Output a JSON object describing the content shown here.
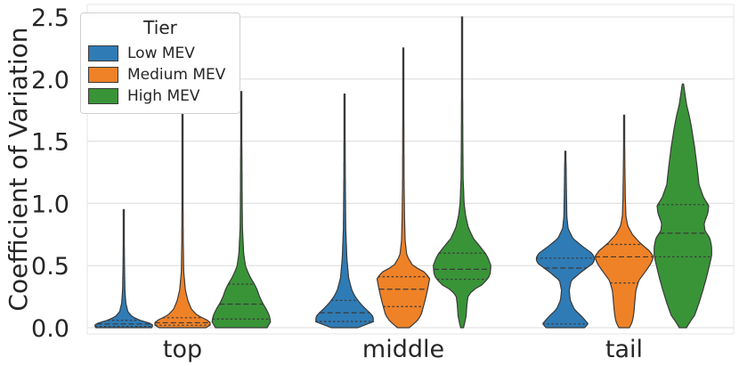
{
  "chart_data": {
    "type": "violin",
    "title": "",
    "xlabel": "",
    "ylabel": "Coefficient of Variation",
    "ylim": [
      -0.05,
      2.6
    ],
    "yticks": [
      "0.0",
      "0.5",
      "1.0",
      "1.5",
      "2.0",
      "2.5"
    ],
    "categories": [
      "top",
      "middle",
      "tail"
    ],
    "legend": {
      "title": "Tier",
      "position": "top-left",
      "entries": [
        "Low MEV",
        "Medium MEV",
        "High MEV"
      ]
    },
    "colors": {
      "Low MEV": "#2f7bb5",
      "Medium MEV": "#ef8227",
      "High MEV": "#399438"
    },
    "series": [
      {
        "name": "Low MEV",
        "violins": [
          {
            "category": "top",
            "min": 0.0,
            "max": 0.95,
            "quartiles": [
              0.01,
              0.03,
              0.06
            ],
            "profile": [
              [
                0.0,
                0.95
              ],
              [
                0.02,
                1.0
              ],
              [
                0.04,
                0.85
              ],
              [
                0.06,
                0.55
              ],
              [
                0.09,
                0.28
              ],
              [
                0.13,
                0.14
              ],
              [
                0.2,
                0.07
              ],
              [
                0.3,
                0.04
              ],
              [
                0.5,
                0.025
              ],
              [
                0.7,
                0.018
              ],
              [
                0.95,
                0.01
              ]
            ]
          },
          {
            "category": "middle",
            "min": 0.0,
            "max": 1.88,
            "quartiles": [
              0.05,
              0.12,
              0.22
            ],
            "profile": [
              [
                0.0,
                0.45
              ],
              [
                0.05,
                1.0
              ],
              [
                0.1,
                0.95
              ],
              [
                0.15,
                0.72
              ],
              [
                0.2,
                0.52
              ],
              [
                0.25,
                0.36
              ],
              [
                0.3,
                0.25
              ],
              [
                0.4,
                0.14
              ],
              [
                0.55,
                0.08
              ],
              [
                0.8,
                0.04
              ],
              [
                1.2,
                0.025
              ],
              [
                1.6,
                0.018
              ],
              [
                1.88,
                0.01
              ]
            ]
          },
          {
            "category": "tail",
            "min": 0.0,
            "max": 1.42,
            "quartiles": [
              0.03,
              0.48,
              0.56
            ],
            "profile": [
              [
                0.0,
                0.65
              ],
              [
                0.03,
                0.78
              ],
              [
                0.08,
                0.6
              ],
              [
                0.15,
                0.3
              ],
              [
                0.22,
                0.17
              ],
              [
                0.3,
                0.13
              ],
              [
                0.38,
                0.2
              ],
              [
                0.45,
                0.55
              ],
              [
                0.52,
                0.95
              ],
              [
                0.56,
                1.0
              ],
              [
                0.6,
                0.9
              ],
              [
                0.66,
                0.55
              ],
              [
                0.72,
                0.25
              ],
              [
                0.8,
                0.09
              ],
              [
                0.9,
                0.05
              ],
              [
                1.1,
                0.035
              ],
              [
                1.3,
                0.025
              ],
              [
                1.42,
                0.01
              ]
            ]
          }
        ]
      },
      {
        "name": "Medium MEV",
        "violins": [
          {
            "category": "top",
            "min": 0.0,
            "max": 1.72,
            "quartiles": [
              0.02,
              0.04,
              0.08
            ],
            "profile": [
              [
                0.0,
                0.8
              ],
              [
                0.03,
                1.0
              ],
              [
                0.06,
                0.85
              ],
              [
                0.1,
                0.5
              ],
              [
                0.15,
                0.3
              ],
              [
                0.22,
                0.18
              ],
              [
                0.3,
                0.1
              ],
              [
                0.45,
                0.04
              ],
              [
                0.7,
                0.025
              ],
              [
                1.0,
                0.018
              ],
              [
                1.4,
                0.015
              ],
              [
                1.72,
                0.01
              ]
            ]
          },
          {
            "category": "middle",
            "min": 0.0,
            "max": 2.25,
            "quartiles": [
              0.17,
              0.31,
              0.41
            ],
            "profile": [
              [
                0.0,
                0.2
              ],
              [
                0.05,
                0.45
              ],
              [
                0.1,
                0.6
              ],
              [
                0.2,
                0.72
              ],
              [
                0.3,
                0.82
              ],
              [
                0.4,
                0.9
              ],
              [
                0.45,
                0.7
              ],
              [
                0.5,
                0.32
              ],
              [
                0.58,
                0.12
              ],
              [
                0.7,
                0.06
              ],
              [
                0.9,
                0.04
              ],
              [
                1.2,
                0.025
              ],
              [
                1.6,
                0.02
              ],
              [
                2.0,
                0.015
              ],
              [
                2.25,
                0.01
              ]
            ]
          },
          {
            "category": "tail",
            "min": 0.0,
            "max": 1.71,
            "quartiles": [
              0.36,
              0.57,
              0.67
            ],
            "profile": [
              [
                0.0,
                0.18
              ],
              [
                0.05,
                0.28
              ],
              [
                0.12,
                0.33
              ],
              [
                0.2,
                0.36
              ],
              [
                0.3,
                0.4
              ],
              [
                0.38,
                0.5
              ],
              [
                0.45,
                0.72
              ],
              [
                0.52,
                0.92
              ],
              [
                0.57,
                1.0
              ],
              [
                0.62,
                0.85
              ],
              [
                0.68,
                0.55
              ],
              [
                0.75,
                0.28
              ],
              [
                0.82,
                0.12
              ],
              [
                0.9,
                0.06
              ],
              [
                1.05,
                0.04
              ],
              [
                1.3,
                0.025
              ],
              [
                1.71,
                0.01
              ]
            ]
          }
        ]
      },
      {
        "name": "High MEV",
        "violins": [
          {
            "category": "top",
            "min": 0.0,
            "max": 1.9,
            "quartiles": [
              0.07,
              0.19,
              0.35
            ],
            "profile": [
              [
                0.0,
                0.88
              ],
              [
                0.05,
                1.0
              ],
              [
                0.1,
                0.95
              ],
              [
                0.15,
                0.85
              ],
              [
                0.2,
                0.72
              ],
              [
                0.25,
                0.62
              ],
              [
                0.3,
                0.55
              ],
              [
                0.35,
                0.45
              ],
              [
                0.4,
                0.32
              ],
              [
                0.45,
                0.22
              ],
              [
                0.5,
                0.14
              ],
              [
                0.6,
                0.08
              ],
              [
                0.8,
                0.04
              ],
              [
                1.0,
                0.03
              ],
              [
                1.3,
                0.025
              ],
              [
                1.6,
                0.015
              ],
              [
                1.9,
                0.008
              ]
            ]
          },
          {
            "category": "middle",
            "min": 0.0,
            "max": 2.5,
            "quartiles": [
              0.39,
              0.47,
              0.6
            ],
            "profile": [
              [
                0.0,
                0.05
              ],
              [
                0.05,
                0.1
              ],
              [
                0.1,
                0.14
              ],
              [
                0.18,
                0.16
              ],
              [
                0.25,
                0.2
              ],
              [
                0.3,
                0.35
              ],
              [
                0.35,
                0.72
              ],
              [
                0.42,
                0.95
              ],
              [
                0.5,
                0.98
              ],
              [
                0.58,
                0.85
              ],
              [
                0.65,
                0.62
              ],
              [
                0.72,
                0.38
              ],
              [
                0.8,
                0.22
              ],
              [
                0.9,
                0.12
              ],
              [
                1.0,
                0.07
              ],
              [
                1.2,
                0.035
              ],
              [
                1.5,
                0.025
              ],
              [
                1.8,
                0.02
              ],
              [
                2.2,
                0.015
              ],
              [
                2.5,
                0.01
              ]
            ]
          },
          {
            "category": "tail",
            "min": 0.0,
            "max": 1.96,
            "quartiles": [
              0.57,
              0.76,
              0.99
            ],
            "profile": [
              [
                0.0,
                0.12
              ],
              [
                0.05,
                0.25
              ],
              [
                0.1,
                0.4
              ],
              [
                0.2,
                0.55
              ],
              [
                0.3,
                0.68
              ],
              [
                0.4,
                0.8
              ],
              [
                0.5,
                0.9
              ],
              [
                0.58,
                0.98
              ],
              [
                0.65,
                0.98
              ],
              [
                0.72,
                0.92
              ],
              [
                0.78,
                0.75
              ],
              [
                0.84,
                0.72
              ],
              [
                0.92,
                0.85
              ],
              [
                0.98,
                0.88
              ],
              [
                1.05,
                0.7
              ],
              [
                1.15,
                0.55
              ],
              [
                1.3,
                0.48
              ],
              [
                1.45,
                0.4
              ],
              [
                1.6,
                0.3
              ],
              [
                1.7,
                0.22
              ],
              [
                1.8,
                0.12
              ],
              [
                1.9,
                0.06
              ],
              [
                1.96,
                0.02
              ]
            ]
          }
        ]
      }
    ]
  }
}
